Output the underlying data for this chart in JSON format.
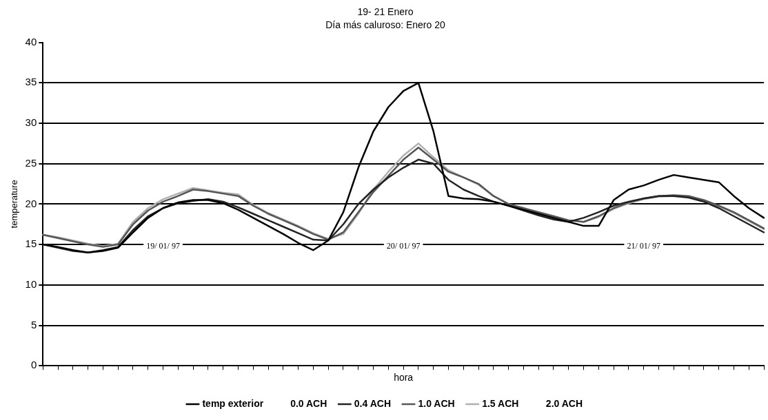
{
  "chart_data": {
    "type": "line",
    "title": "19- 21 Enero",
    "subtitle": "Día más caluroso: Enero 20",
    "xlabel": "hora",
    "ylabel": "temperature",
    "categories": [
      null,
      null,
      null,
      null,
      null,
      null,
      null,
      null,
      null,
      null,
      null,
      null,
      null,
      null,
      null,
      null,
      null,
      null,
      null,
      null,
      null,
      null,
      null,
      null,
      null,
      null,
      null,
      null,
      null,
      null,
      null,
      null,
      null,
      null,
      null,
      null,
      null,
      null,
      null,
      null,
      null,
      null,
      null,
      null,
      null,
      null,
      null,
      null,
      null
    ],
    "series": [
      {
        "name": "temp exterior",
        "color": "#000000",
        "values": [
          15,
          14.7,
          14.3,
          14,
          14.2,
          14.6,
          16.5,
          18.3,
          19.5,
          20.2,
          20.5,
          20.5,
          20.1,
          19.3,
          18.3,
          17.3,
          16.3,
          15.2,
          14.3,
          15.5,
          19,
          24.5,
          29,
          32,
          34,
          35,
          29,
          21,
          20.7,
          20.6,
          20.3,
          19.8,
          19.3,
          18.8,
          18.3,
          17.8,
          17.3,
          17.3,
          20.5,
          21.8,
          22.3,
          23,
          23.6,
          23.3,
          23,
          22.7,
          21,
          19.5,
          18.3
        ]
      },
      {
        "name": "0.0 ACH",
        "values": [
          null,
          null,
          null,
          null,
          null,
          null,
          null,
          null,
          null,
          null,
          null,
          null,
          null,
          null,
          null,
          null,
          null,
          null,
          null,
          null,
          null,
          null,
          null,
          null,
          null,
          null,
          null,
          null,
          null,
          null,
          null,
          null,
          null,
          null,
          null,
          null,
          null,
          null,
          null,
          null,
          null,
          null,
          null,
          null,
          null,
          null,
          null,
          null,
          null
        ]
      },
      {
        "name": "0.4 ACH",
        "color": "#222222",
        "values": [
          15,
          14.6,
          14.2,
          14,
          14.3,
          14.7,
          16.8,
          18.5,
          19.5,
          20.1,
          20.4,
          20.6,
          20.3,
          19.6,
          18.8,
          18,
          17.2,
          16.4,
          15.6,
          15.5,
          17.5,
          20,
          21.8,
          23.3,
          24.5,
          25.5,
          25,
          23,
          21.8,
          21,
          20.3,
          19.8,
          19.2,
          18.6,
          18.1,
          17.8,
          18.3,
          19,
          19.8,
          20.3,
          20.7,
          21,
          21,
          20.8,
          20.3,
          19.5,
          18.5,
          17.5,
          16.5
        ]
      },
      {
        "name": "1.0 ACH",
        "color": "#555555",
        "values": [
          16.2,
          15.8,
          15.4,
          15,
          14.7,
          15,
          17.5,
          19.2,
          20.3,
          21,
          21.8,
          21.6,
          21.3,
          21,
          19.8,
          18.8,
          18,
          17.2,
          16.3,
          15.6,
          16.5,
          19,
          21.5,
          23.5,
          25.5,
          27,
          25.5,
          24,
          23.3,
          22.5,
          21,
          20,
          19.5,
          19,
          18.5,
          18,
          17.8,
          18.5,
          19.5,
          20.2,
          20.7,
          21,
          21.1,
          21,
          20.5,
          19.8,
          19,
          18,
          17
        ]
      },
      {
        "name": "1.5 ACH",
        "color": "#b0b0b0",
        "values": [
          16.2,
          15.9,
          15.5,
          15.1,
          14.8,
          15.1,
          17.8,
          19.5,
          20.6,
          21.3,
          22,
          21.7,
          21.4,
          21.2,
          19.9,
          18.9,
          18.1,
          17.3,
          16.4,
          15.7,
          16.3,
          18.8,
          21.8,
          24,
          26,
          27.5,
          25.8,
          24.2,
          23.3,
          22.4,
          21,
          20,
          19.5,
          19,
          18.5,
          18,
          17.8,
          18.4,
          19.4,
          20.1,
          20.6,
          20.9,
          21,
          20.9,
          20.4,
          19.7,
          18.9,
          17.9,
          16.9
        ]
      },
      {
        "name": "2.0 ACH",
        "values": [
          null,
          null,
          null,
          null,
          null,
          null,
          null,
          null,
          null,
          null,
          null,
          null,
          null,
          null,
          null,
          null,
          null,
          null,
          null,
          null,
          null,
          null,
          null,
          null,
          null,
          null,
          null,
          null,
          null,
          null,
          null,
          null,
          null,
          null,
          null,
          null,
          null,
          null,
          null,
          null,
          null,
          null,
          null,
          null,
          null,
          null,
          null,
          null,
          null
        ]
      }
    ],
    "ylim": [
      0,
      40
    ],
    "yticks": [
      0,
      5,
      10,
      15,
      20,
      25,
      30,
      35,
      40
    ],
    "grid": "y",
    "legend": "bottom",
    "tick_labels": "y",
    "marker": "none",
    "line_style": "solid",
    "annotations": [
      "19/ 01/ 97",
      "20/ 01/ 97",
      "21/ 01/ 97"
    ]
  }
}
